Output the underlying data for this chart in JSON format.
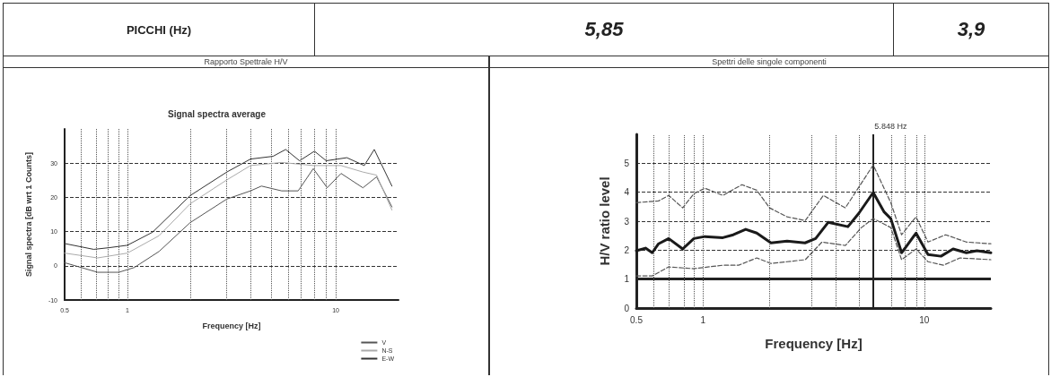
{
  "chart_data": [
    {
      "type": "line",
      "title": "Signal spectra average",
      "xlabel": "Frequency [Hz]",
      "ylabel": "Signal spectra [dB wrt 1 Counts]",
      "log": "x",
      "xlim": [
        0.5,
        20
      ],
      "xticks": [
        0.5,
        1,
        10
      ],
      "ylim": [
        -10,
        40
      ],
      "yticks": [
        -10,
        0,
        10,
        20,
        30
      ],
      "grid": "y",
      "legend": "bottom right",
      "marker": "none",
      "line_style": "solid",
      "annotations": [
        "PICCHI (Hz)",
        "5,85",
        "3,9",
        "Rapporto Spettrale H/V"
      ],
      "ref_lines": [
        {
          "axis": "x",
          "value": 0.6,
          "line_style": "dotted"
        },
        {
          "axis": "x",
          "value": 0.71,
          "line_style": "dotted"
        },
        {
          "axis": "x",
          "value": 0.81,
          "line_style": "dotted"
        },
        {
          "axis": "x",
          "value": 0.91,
          "line_style": "dotted"
        },
        {
          "axis": "x",
          "value": 1,
          "line_style": "dotted"
        },
        {
          "axis": "x",
          "value": 2,
          "line_style": "dotted"
        },
        {
          "axis": "x",
          "value": 3,
          "line_style": "dotted"
        },
        {
          "axis": "x",
          "value": 3.9,
          "line_style": "dotted"
        },
        {
          "axis": "x",
          "value": 4.9,
          "line_style": "dotted"
        },
        {
          "axis": "x",
          "value": 5.9,
          "line_style": "dotted"
        },
        {
          "axis": "x",
          "value": 6.8,
          "line_style": "dotted"
        },
        {
          "axis": "x",
          "value": 7.9,
          "line_style": "dotted"
        },
        {
          "axis": "x",
          "value": 9,
          "line_style": "dotted"
        },
        {
          "axis": "x",
          "value": 10,
          "line_style": "dotted"
        }
      ],
      "series": [
        {
          "name": "V",
          "color": "#555555",
          "x": [
            0.5,
            0.72,
            0.91,
            1.08,
            1.42,
            2,
            3,
            3.9,
            4.4,
            5.5,
            6.6,
            7.8,
            9.1,
            10.6,
            13.5,
            15.7,
            18.6
          ],
          "values": [
            0.9,
            -1.9,
            -1.9,
            -0.5,
            4.2,
            12.6,
            19.5,
            21.9,
            23.3,
            21.9,
            21.9,
            28.4,
            22.8,
            27,
            22.8,
            26,
            17.2
          ]
        },
        {
          "name": "N-S",
          "color": "#aaaaaa",
          "x": [
            0.5,
            0.72,
            1,
            1.42,
            2,
            3,
            3.9,
            5.5,
            7.8,
            10.6,
            13.5,
            15.7,
            18.6
          ],
          "values": [
            3.7,
            2.3,
            3.7,
            8.8,
            18.1,
            25.1,
            29.3,
            30.2,
            29.3,
            29.3,
            27.4,
            26.5,
            16.3
          ]
        },
        {
          "name": "E-W",
          "color": "#333333",
          "x": [
            0.5,
            0.69,
            0.82,
            1,
            1.32,
            2,
            3,
            3.9,
            5,
            5.75,
            6.7,
            7.9,
            9,
            11.3,
            13.7,
            15.3,
            18.6
          ],
          "values": [
            6.5,
            4.8,
            5.3,
            6,
            9.8,
            20.5,
            27.4,
            31.2,
            32,
            34,
            30.7,
            33.5,
            30.7,
            31.6,
            29.3,
            34,
            23.3
          ]
        }
      ]
    },
    {
      "type": "line",
      "xlabel": "Frequency [Hz]",
      "ylabel": "H/V ratio level",
      "log": "x",
      "xlim": [
        0.5,
        20
      ],
      "xticks": [
        0.5,
        1,
        10
      ],
      "ylim": [
        0,
        6
      ],
      "yticks": [
        0,
        1,
        2,
        3,
        4,
        5
      ],
      "grid": "y",
      "legend": false,
      "marker": "none",
      "annotations": [
        "Spettri delle singole componenti"
      ],
      "ref_lines": [
        {
          "axis": "y",
          "value": 1,
          "line_style": "solid"
        },
        {
          "axis": "x",
          "value": 5.848,
          "label": "5.848 Hz",
          "line_style": "solid"
        },
        {
          "axis": "x",
          "value": 0.6,
          "line_style": "dotted"
        },
        {
          "axis": "x",
          "value": 0.7,
          "line_style": "dotted"
        },
        {
          "axis": "x",
          "value": 0.82,
          "line_style": "dotted"
        },
        {
          "axis": "x",
          "value": 0.91,
          "line_style": "dotted"
        },
        {
          "axis": "x",
          "value": 1,
          "line_style": "dotted"
        },
        {
          "axis": "x",
          "value": 2,
          "line_style": "dotted"
        },
        {
          "axis": "x",
          "value": 3.1,
          "line_style": "dotted"
        },
        {
          "axis": "x",
          "value": 4,
          "line_style": "dotted"
        },
        {
          "axis": "x",
          "value": 5.1,
          "line_style": "dotted"
        },
        {
          "axis": "x",
          "value": 7.1,
          "line_style": "dotted"
        },
        {
          "axis": "x",
          "value": 8.2,
          "line_style": "dotted"
        },
        {
          "axis": "x",
          "value": 9.2,
          "line_style": "dotted"
        },
        {
          "axis": "x",
          "value": 10,
          "line_style": "dotted"
        }
      ],
      "series": [
        {
          "color": "#1a1a1a",
          "line_style": "solid",
          "x": [
            0.5,
            0.55,
            0.59,
            0.63,
            0.7,
            0.81,
            0.91,
            1.02,
            1.23,
            1.37,
            1.56,
            1.75,
            2.03,
            2.4,
            2.89,
            3.23,
            3.68,
            4.52,
            5.06,
            5.88,
            6.57,
            7.06,
            7.9,
            8.36,
            9.18,
            10.4,
            11.9,
            13.5,
            15.5,
            17.3,
            20
          ],
          "values": [
            1.98,
            2.07,
            1.91,
            2.22,
            2.4,
            2.04,
            2.4,
            2.47,
            2.43,
            2.53,
            2.72,
            2.59,
            2.25,
            2.31,
            2.25,
            2.4,
            2.96,
            2.81,
            3.27,
            3.99,
            3.33,
            3.09,
            1.91,
            2.16,
            2.59,
            1.85,
            1.79,
            2.04,
            1.91,
            1.98,
            1.91
          ]
        },
        {
          "color": "#555555",
          "line_style": "dashed",
          "x": [
            0.5,
            0.63,
            0.7,
            0.81,
            0.91,
            1.02,
            1.23,
            1.5,
            1.75,
            2,
            2.4,
            2.9,
            3.5,
            4.4,
            5.88,
            7.06,
            7.9,
            9.18,
            10.4,
            12.5,
            15.5,
            20
          ],
          "values": [
            3.64,
            3.7,
            3.89,
            3.46,
            3.95,
            4.14,
            3.89,
            4.26,
            4.07,
            3.46,
            3.15,
            3.02,
            3.89,
            3.46,
            4.94,
            3.64,
            2.53,
            3.15,
            2.28,
            2.53,
            2.28,
            2.22
          ]
        },
        {
          "color": "#555555",
          "line_style": "dashed",
          "x": [
            0.5,
            0.59,
            0.7,
            0.91,
            1.23,
            1.45,
            1.75,
            2.03,
            2.4,
            2.9,
            3.45,
            4.4,
            5.2,
            5.88,
            7.06,
            7.9,
            9.18,
            10.4,
            12.2,
            14.5,
            20
          ],
          "values": [
            1.11,
            1.11,
            1.42,
            1.36,
            1.48,
            1.48,
            1.73,
            1.54,
            1.6,
            1.67,
            2.28,
            2.16,
            2.78,
            3.09,
            2.78,
            1.67,
            2.04,
            1.6,
            1.48,
            1.73,
            1.67
          ]
        }
      ]
    }
  ]
}
